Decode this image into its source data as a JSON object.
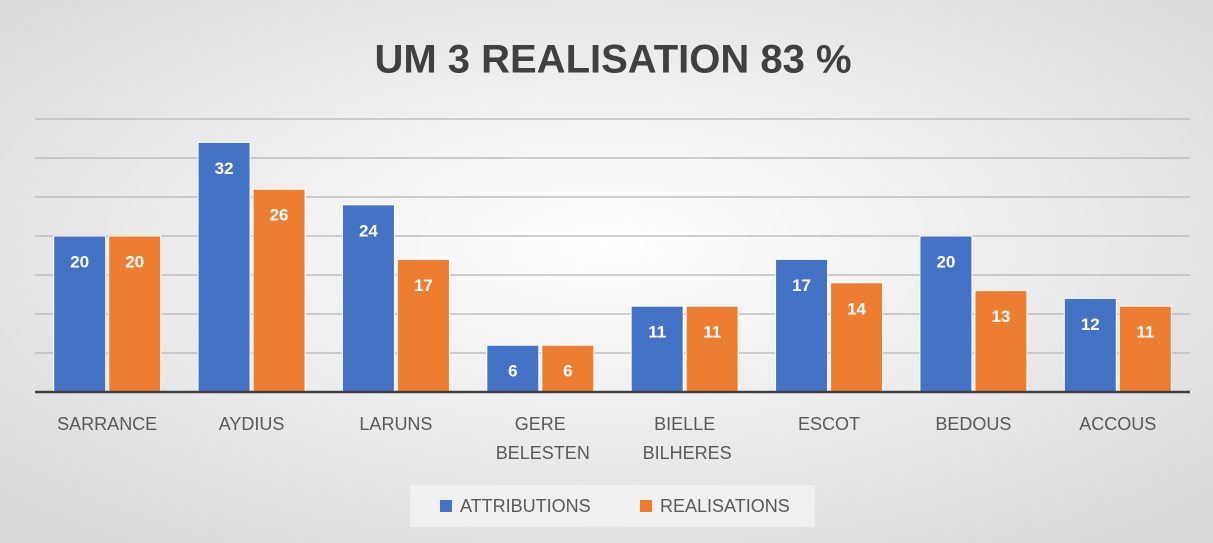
{
  "chart_data": {
    "type": "bar",
    "title": "UM 3 REALISATION 83 %",
    "categories": [
      "SARRANCE",
      "AYDIUS",
      "LARUNS",
      "GERE BELESTEN",
      "BIELLE BILHERES",
      "ESCOT",
      "BEDOUS",
      "ACCOUS"
    ],
    "series": [
      {
        "name": "ATTRIBUTIONS",
        "color": "#4472c4",
        "values": [
          20,
          32,
          24,
          6,
          11,
          17,
          20,
          12
        ]
      },
      {
        "name": "REALISATIONS",
        "color": "#ed7d31",
        "values": [
          20,
          26,
          17,
          6,
          11,
          14,
          13,
          11
        ]
      }
    ],
    "ylim": [
      0,
      35
    ],
    "yticks": [
      0,
      5,
      10,
      15,
      20,
      25,
      30,
      35
    ],
    "grid": true,
    "legend": "bottom"
  }
}
